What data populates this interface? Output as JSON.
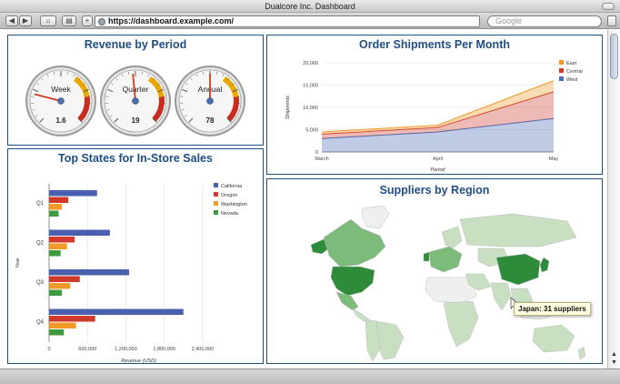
{
  "window": {
    "title": "Dualcore Inc. Dashboard"
  },
  "browser": {
    "url": "https://dashboard.example.com/",
    "search_placeholder": "Google",
    "back_glyph": "◀",
    "forward_glyph": "▶",
    "home_glyph": "⌂",
    "bookmark_glyph": "▤",
    "add_glyph": "+"
  },
  "revenue_panel": {
    "title": "Revenue by Period",
    "gauges": [
      {
        "label": "Week",
        "value": "1.6",
        "fraction": 0.22
      },
      {
        "label": "Quarter",
        "value": "19",
        "fraction": 0.48
      },
      {
        "label": "Annual",
        "value": "78",
        "fraction": 0.5
      }
    ],
    "colors": {
      "needle": "#d23a1f",
      "yellow": "#e8a800",
      "red": "#cc2a1a"
    }
  },
  "shipments_panel": {
    "title": "Order Shipments Per Month",
    "chart_data": {
      "type": "area",
      "stacked": true,
      "x": [
        "March",
        "April",
        "May"
      ],
      "xlabel": "Period",
      "ylabel": "Shipments",
      "ylim": [
        0,
        20000
      ],
      "yticks": [
        "0",
        "5,000",
        "10,000",
        "15,000",
        "20,000"
      ],
      "series": [
        {
          "name": "West",
          "color": "#4a6bb6",
          "values": [
            3000,
            4500,
            7500
          ]
        },
        {
          "name": "Central",
          "color": "#cf3a2a",
          "values": [
            1000,
            1000,
            6000
          ]
        },
        {
          "name": "East",
          "color": "#f09a28",
          "values": [
            500,
            500,
            2500
          ]
        }
      ],
      "legend": "top-right",
      "grid": true
    }
  },
  "states_panel": {
    "title": "Top States for In-Store Sales",
    "chart_data": {
      "type": "bar",
      "orientation": "horizontal",
      "categories": [
        "Q1",
        "Q2",
        "Q3",
        "Q4"
      ],
      "xlabel": "Revenue (USD)",
      "ylabel": "Year",
      "xlim": [
        0,
        2800000
      ],
      "xticks": [
        "0",
        "600,000",
        "1,200,000",
        "1,800,000",
        "2,400,000"
      ],
      "series": [
        {
          "name": "California",
          "color": "#4a5fae",
          "values": [
            750000,
            950000,
            1250000,
            2100000
          ]
        },
        {
          "name": "Oregon",
          "color": "#cf3a2a",
          "values": [
            300000,
            400000,
            480000,
            720000
          ]
        },
        {
          "name": "Washington",
          "color": "#f09a28",
          "values": [
            200000,
            280000,
            330000,
            420000
          ]
        },
        {
          "name": "Nevada",
          "color": "#3e9a3e",
          "values": [
            150000,
            180000,
            200000,
            230000
          ]
        }
      ],
      "legend": "top-right",
      "grid": true
    }
  },
  "suppliers_panel": {
    "title": "Suppliers by Region",
    "tooltip": "Japan: 31 suppliers",
    "colors": {
      "dark": "#2e8b3a",
      "medium": "#7cbb7a",
      "light": "#c9dfc2",
      "pale": "#eef0ee",
      "border": "#bbbbbb"
    }
  }
}
